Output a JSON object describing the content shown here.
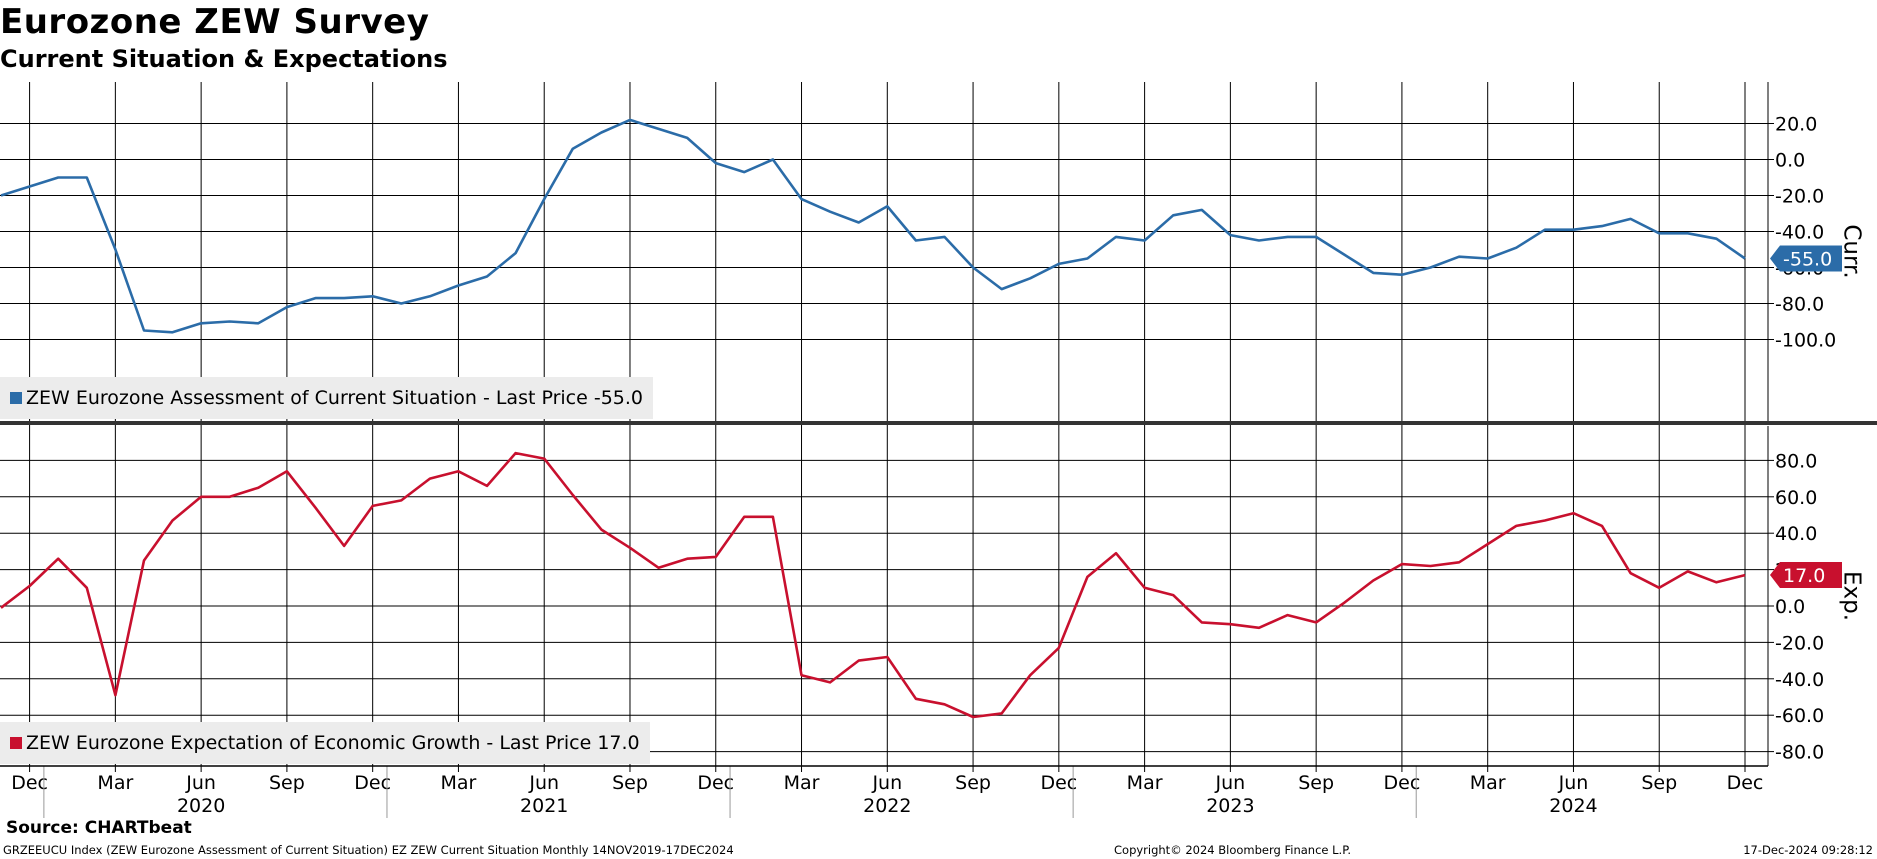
{
  "header": {
    "title": "Eurozone ZEW Survey",
    "subtitle": "Current Situation & Expectations"
  },
  "footer": {
    "source": "Source: CHARTbeat",
    "ticker_line": "GRZEEUCU Index (ZEW Eurozone Assessment of Current Situation) EZ ZEW Current Situation  Monthly 14NOV2019-17DEC2024",
    "copyright": "Copyright© 2024 Bloomberg Finance L.P.",
    "timestamp": "17-Dec-2024 09:28:12"
  },
  "chart_data": [
    {
      "type": "line",
      "axis_label": "Curr.",
      "ylim": [
        -120,
        35
      ],
      "yticks": [
        20,
        0,
        -20,
        -40,
        -60,
        -80,
        -100
      ],
      "ytick_labels": [
        "20.0",
        "0.0",
        "-20.0",
        "-40.0",
        "-60.0",
        "-80.0",
        "-100.0"
      ],
      "grid": true,
      "legend_placement": "bottom-left",
      "last_value_label": "-55.0",
      "color": "#2b6ca8",
      "series": [
        {
          "name": "ZEW Eurozone Assessment of Current Situation - Last Price -55.0",
          "x": [
            "2019-11",
            "2019-12",
            "2020-01",
            "2020-02",
            "2020-03",
            "2020-04",
            "2020-05",
            "2020-06",
            "2020-07",
            "2020-08",
            "2020-09",
            "2020-10",
            "2020-11",
            "2020-12",
            "2021-01",
            "2021-02",
            "2021-03",
            "2021-04",
            "2021-05",
            "2021-06",
            "2021-07",
            "2021-08",
            "2021-09",
            "2021-10",
            "2021-11",
            "2021-12",
            "2022-01",
            "2022-02",
            "2022-03",
            "2022-04",
            "2022-05",
            "2022-06",
            "2022-07",
            "2022-08",
            "2022-09",
            "2022-10",
            "2022-11",
            "2022-12",
            "2023-01",
            "2023-02",
            "2023-03",
            "2023-04",
            "2023-05",
            "2023-06",
            "2023-07",
            "2023-08",
            "2023-09",
            "2023-10",
            "2023-11",
            "2023-12",
            "2024-01",
            "2024-02",
            "2024-03",
            "2024-04",
            "2024-05",
            "2024-06",
            "2024-07",
            "2024-08",
            "2024-09",
            "2024-10",
            "2024-11",
            "2024-12"
          ],
          "values": [
            -20,
            -15,
            -10,
            -10,
            -50,
            -95,
            -96,
            -91,
            -90,
            -91,
            -82,
            -77,
            -77,
            -76,
            -80,
            -76,
            -70,
            -65,
            -52,
            -22,
            6,
            15,
            22,
            17,
            12,
            -2,
            -7,
            0,
            -22,
            -29,
            -35,
            -26,
            -45,
            -43,
            -60,
            -72,
            -66,
            -58,
            -55,
            -43,
            -45,
            -31,
            -28,
            -42,
            -45,
            -43,
            -43,
            -53,
            -63,
            -64,
            -60,
            -54,
            -55,
            -49,
            -39,
            -39,
            -37,
            -33,
            -41,
            -41,
            -44,
            -55
          ]
        }
      ]
    },
    {
      "type": "line",
      "axis_label": "Exp.",
      "ylim": [
        -88,
        92
      ],
      "yticks": [
        80,
        60,
        40,
        20,
        0,
        -20,
        -40,
        -60,
        -80
      ],
      "ytick_labels": [
        "80.0",
        "60.0",
        "40.0",
        "20.0",
        "0.0",
        "-20.0",
        "-40.0",
        "-60.0",
        "-80.0"
      ],
      "grid": true,
      "legend_placement": "bottom-left",
      "last_value_label": "17.0",
      "color": "#c8102e",
      "series": [
        {
          "name": "ZEW Eurozone Expectation of Economic Growth - Last Price 17.0",
          "x": [
            "2019-11",
            "2019-12",
            "2020-01",
            "2020-02",
            "2020-03",
            "2020-04",
            "2020-05",
            "2020-06",
            "2020-07",
            "2020-08",
            "2020-09",
            "2020-10",
            "2020-11",
            "2020-12",
            "2021-01",
            "2021-02",
            "2021-03",
            "2021-04",
            "2021-05",
            "2021-06",
            "2021-07",
            "2021-08",
            "2021-09",
            "2021-10",
            "2021-11",
            "2021-12",
            "2022-01",
            "2022-02",
            "2022-03",
            "2022-04",
            "2022-05",
            "2022-06",
            "2022-07",
            "2022-08",
            "2022-09",
            "2022-10",
            "2022-11",
            "2022-12",
            "2023-01",
            "2023-02",
            "2023-03",
            "2023-04",
            "2023-05",
            "2023-06",
            "2023-07",
            "2023-08",
            "2023-09",
            "2023-10",
            "2023-11",
            "2023-12",
            "2024-01",
            "2024-02",
            "2024-03",
            "2024-04",
            "2024-05",
            "2024-06",
            "2024-07",
            "2024-08",
            "2024-09",
            "2024-10",
            "2024-11",
            "2024-12"
          ],
          "values": [
            -1,
            11,
            26,
            10,
            -49,
            25,
            47,
            60,
            60,
            65,
            74,
            54,
            33,
            55,
            58,
            70,
            74,
            66,
            84,
            81,
            61,
            42,
            32,
            21,
            26,
            27,
            49,
            49,
            -38,
            -42,
            -30,
            -28,
            -51,
            -54,
            -61,
            -59,
            -38,
            -23,
            16,
            29,
            10,
            6,
            -9,
            -10,
            -12,
            -5,
            -9,
            2,
            14,
            23,
            22,
            24,
            34,
            44,
            47,
            51,
            44,
            18,
            10,
            19,
            13,
            17
          ]
        }
      ]
    }
  ],
  "x_axis": {
    "month_labels": [
      {
        "label": "Dec",
        "x": "2019-12"
      },
      {
        "label": "Mar",
        "x": "2020-03"
      },
      {
        "label": "Jun",
        "x": "2020-06"
      },
      {
        "label": "Sep",
        "x": "2020-09"
      },
      {
        "label": "Dec",
        "x": "2020-12"
      },
      {
        "label": "Mar",
        "x": "2021-03"
      },
      {
        "label": "Jun",
        "x": "2021-06"
      },
      {
        "label": "Sep",
        "x": "2021-09"
      },
      {
        "label": "Dec",
        "x": "2021-12"
      },
      {
        "label": "Mar",
        "x": "2022-03"
      },
      {
        "label": "Jun",
        "x": "2022-06"
      },
      {
        "label": "Sep",
        "x": "2022-09"
      },
      {
        "label": "Dec",
        "x": "2022-12"
      },
      {
        "label": "Mar",
        "x": "2023-03"
      },
      {
        "label": "Jun",
        "x": "2023-06"
      },
      {
        "label": "Sep",
        "x": "2023-09"
      },
      {
        "label": "Dec",
        "x": "2023-12"
      },
      {
        "label": "Mar",
        "x": "2024-03"
      },
      {
        "label": "Jun",
        "x": "2024-06"
      },
      {
        "label": "Sep",
        "x": "2024-09"
      },
      {
        "label": "Dec",
        "x": "2024-12"
      }
    ],
    "year_labels": [
      {
        "label": "2020",
        "x": "2020-06"
      },
      {
        "label": "2021",
        "x": "2021-06"
      },
      {
        "label": "2022",
        "x": "2022-06"
      },
      {
        "label": "2023",
        "x": "2023-06"
      },
      {
        "label": "2024",
        "x": "2024-06"
      }
    ]
  }
}
